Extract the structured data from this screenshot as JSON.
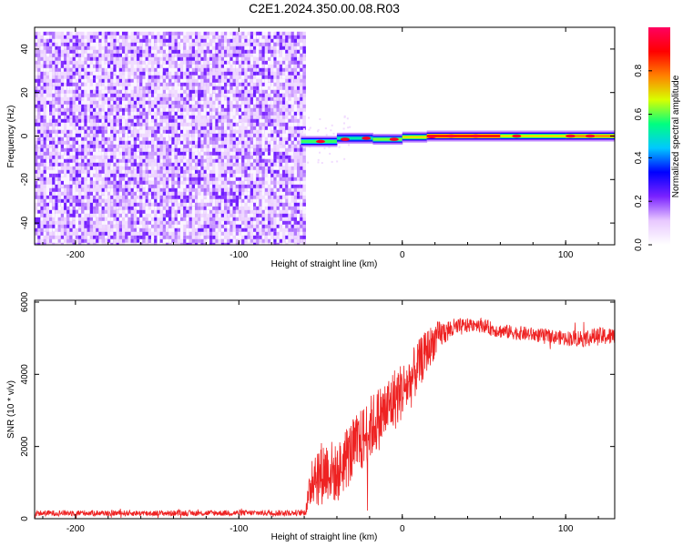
{
  "title": "C2E1.2024.350.00.08.R03",
  "chart_data": [
    {
      "type": "heatmap",
      "xlabel": "Height of straight line (km)",
      "ylabel": "Frequency (Hz)",
      "xlim": [
        -225,
        130
      ],
      "ylim": [
        -50,
        50
      ],
      "xticks": [
        -200,
        -100,
        0,
        100
      ],
      "yticks": [
        -40,
        -20,
        0,
        20,
        40
      ],
      "colorbar": {
        "label": "Normalized spectral amplitude",
        "range": [
          0,
          1
        ],
        "ticks": [
          "0.0",
          "0.2",
          "0.4",
          "0.6",
          "0.8"
        ],
        "colors": [
          "#ffffff",
          "#e8c8ff",
          "#7a22ff",
          "#0000ff",
          "#00c8ff",
          "#00ff80",
          "#d8ff00",
          "#ff8000",
          "#ff0000",
          "#ff0060"
        ]
      },
      "noise_region_x": [
        -225,
        -60
      ],
      "noise_region_freq": [
        -50,
        48
      ],
      "signal_segments": [
        {
          "x0": -62,
          "x1": -40,
          "f": -2.5,
          "amplitude": 0.55
        },
        {
          "x0": -40,
          "x1": -18,
          "f": -1.0,
          "amplitude": 0.45
        },
        {
          "x0": -18,
          "x1": 0,
          "f": -1.5,
          "amplitude": 0.6
        },
        {
          "x0": 0,
          "x1": 15,
          "f": -0.5,
          "amplitude": 0.7
        },
        {
          "x0": 15,
          "x1": 60,
          "f": 0,
          "amplitude": 0.95
        },
        {
          "x0": 60,
          "x1": 100,
          "f": 0,
          "amplitude": 0.7
        },
        {
          "x0": 100,
          "x1": 130,
          "f": 0,
          "amplitude": 0.8
        }
      ]
    },
    {
      "type": "line",
      "xlabel": "Height of straight line (km)",
      "ylabel": "SNR (10 * v/v)",
      "xlim": [
        -225,
        130
      ],
      "ylim": [
        0,
        6050
      ],
      "xticks": [
        -200,
        -100,
        0,
        100
      ],
      "yticks": [
        0,
        2000,
        4000,
        6000
      ],
      "line_color": "#ee2222",
      "series": [
        {
          "x": [
            -225,
            -200,
            -150,
            -100,
            -60,
            -57,
            -55,
            -50,
            -45,
            -40,
            -35,
            -30,
            -25,
            -20,
            -15,
            -10,
            -5,
            0,
            5,
            10,
            15,
            20,
            25,
            30,
            35,
            40,
            45,
            50,
            55,
            60,
            70,
            80,
            90,
            100,
            110,
            120,
            130
          ],
          "values": [
            150,
            160,
            150,
            160,
            160,
            600,
            1300,
            1250,
            1400,
            1200,
            1650,
            1900,
            2150,
            2500,
            2750,
            3000,
            3300,
            3550,
            3800,
            4250,
            4650,
            4950,
            5150,
            5250,
            5300,
            5350,
            5400,
            5350,
            5250,
            5200,
            5150,
            5100,
            5050,
            5000,
            5000,
            5050,
            5050
          ],
          "noise_amplitude": [
            80,
            80,
            80,
            80,
            80,
            500,
            900,
            900,
            900,
            800,
            900,
            900,
            900,
            900,
            900,
            900,
            900,
            800,
            800,
            700,
            600,
            500,
            350,
            300,
            250,
            200,
            200,
            200,
            200,
            200,
            200,
            200,
            200,
            200,
            250,
            250,
            250
          ]
        }
      ]
    }
  ]
}
